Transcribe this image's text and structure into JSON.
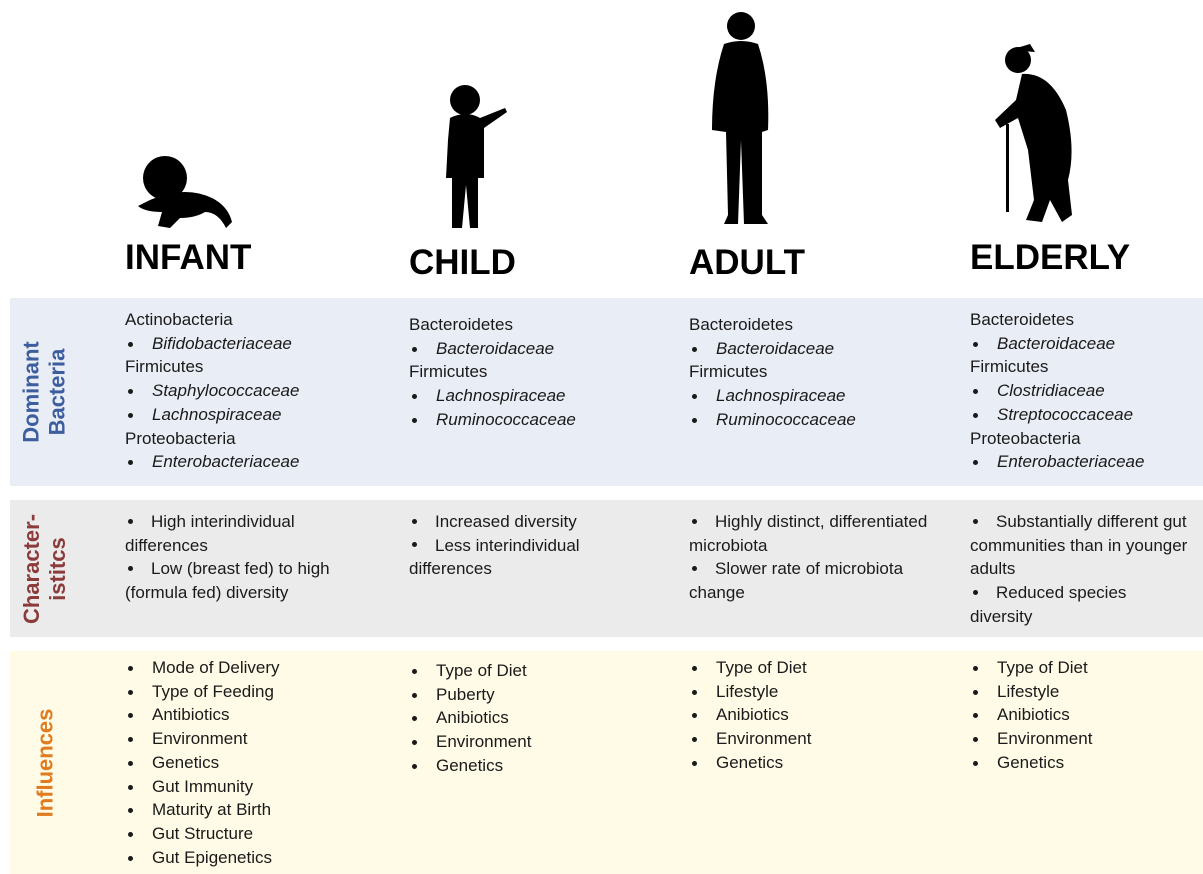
{
  "row_labels": {
    "bacteria": [
      "Dominant",
      "Bacteria"
    ],
    "characteristics": [
      "Character-",
      "istitcs"
    ],
    "influences": [
      "Influences"
    ]
  },
  "columns": [
    {
      "title": "INFANT",
      "bacteria": [
        {
          "phylum": "Actinobacteria",
          "families": [
            "Bifidobacteriaceae"
          ]
        },
        {
          "phylum": "Firmicutes",
          "families": [
            "Staphylococcaceae",
            "Lachnospiraceae"
          ]
        },
        {
          "phylum": "Proteobacteria",
          "families": [
            "Enterobacteriaceae"
          ]
        }
      ],
      "characteristics": [
        "High interindividual differences",
        "Low (breast fed) to high (formula fed) diversity"
      ],
      "influences": [
        "Mode of Delivery",
        "Type of Feeding",
        "Antibiotics",
        "Environment",
        "Genetics",
        "Gut Immunity",
        "Maturity at Birth",
        "Gut Structure",
        "Gut Epigenetics"
      ]
    },
    {
      "title": "CHILD",
      "bacteria": [
        {
          "phylum": "Bacteroidetes",
          "families": [
            "Bacteroidaceae"
          ]
        },
        {
          "phylum": "Firmicutes",
          "families": [
            "Lachnospiraceae",
            "Ruminococcaceae"
          ]
        }
      ],
      "characteristics": [
        "Increased diversity",
        "Less interindividual differences"
      ],
      "influences": [
        "Type of Diet",
        "Puberty",
        "Anibiotics",
        "Environment",
        "Genetics"
      ]
    },
    {
      "title": "ADULT",
      "bacteria": [
        {
          "phylum": "Bacteroidetes",
          "families": [
            "Bacteroidaceae"
          ]
        },
        {
          "phylum": "Firmicutes",
          "families": [
            "Lachnospiraceae",
            "Ruminococcaceae"
          ]
        }
      ],
      "characteristics": [
        "Highly distinct, differentiated microbiota",
        "Slower rate of microbiota change"
      ],
      "influences": [
        "Type of Diet",
        "Lifestyle",
        "Anibiotics",
        "Environment",
        "Genetics"
      ]
    },
    {
      "title": "ELDERLY",
      "bacteria": [
        {
          "phylum": "Bacteroidetes",
          "families": [
            "Bacteroidaceae"
          ]
        },
        {
          "phylum": "Firmicutes",
          "families": [
            "Clostridiaceae",
            "Streptococcaceae"
          ]
        },
        {
          "phylum": "Proteobacteria",
          "families": [
            "Enterobacteriaceae"
          ]
        }
      ],
      "characteristics": [
        "Substantially different gut communities than in younger adults",
        "Reduced species diversity"
      ],
      "influences": [
        "Type of Diet",
        "Lifestyle",
        "Anibiotics",
        "Environment",
        "Genetics"
      ]
    }
  ]
}
